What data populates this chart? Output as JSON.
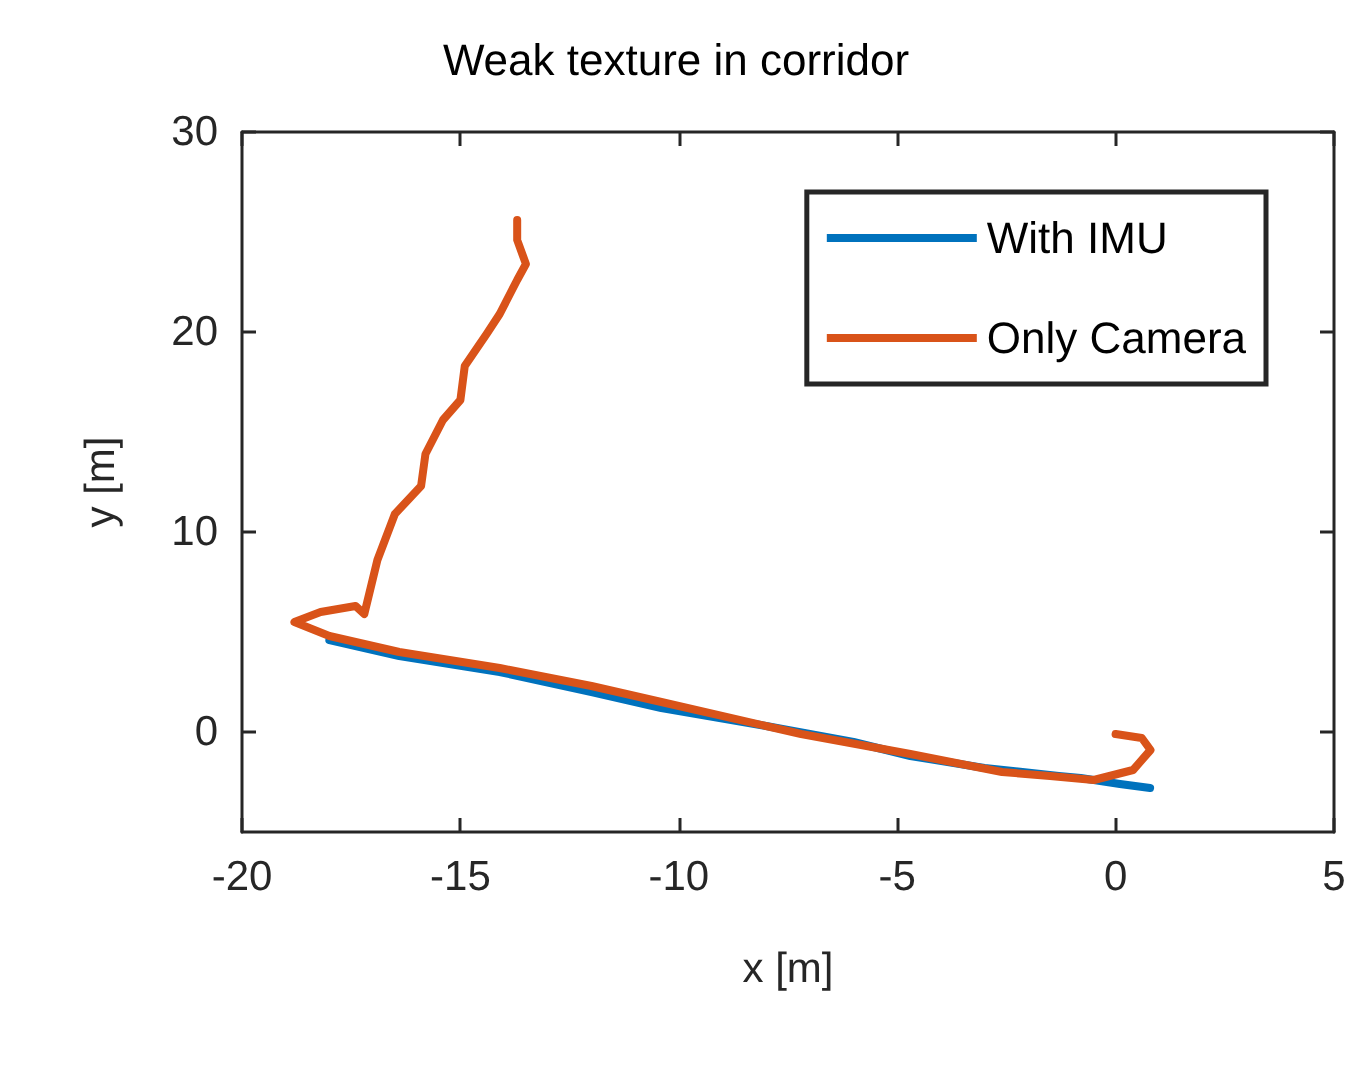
{
  "chart_data": {
    "type": "line",
    "title": "Weak texture in corridor",
    "xlabel": "x [m]",
    "ylabel": "y [m]",
    "xlim": [
      -20,
      5
    ],
    "ylim": [
      -5,
      30
    ],
    "xticks": [
      -20,
      -15,
      -10,
      -5,
      0,
      5
    ],
    "yticks": [
      0,
      10,
      20,
      30
    ],
    "grid": false,
    "legend": "top right",
    "marker": "none",
    "line_style": "solid",
    "series": [
      {
        "name": "With IMU",
        "color": "#0072bd",
        "x": [
          -18.0,
          -16.4,
          -14.1,
          -12.0,
          -10.4,
          -8.0,
          -6.0,
          -4.7,
          -3.0,
          -1.3,
          -0.8,
          0.1,
          0.79
        ],
        "values": [
          4.6,
          3.8,
          3.0,
          2.0,
          1.2,
          0.3,
          -0.5,
          -1.2,
          -1.8,
          -2.2,
          -2.3,
          -2.6,
          -2.8
        ]
      },
      {
        "name": "Only Camera",
        "color": "#d95319",
        "x": [
          0.0,
          0.6,
          0.8,
          0.4,
          -0.5,
          -1.5,
          -2.6,
          -4.7,
          -7.2,
          -10.4,
          -12.0,
          -14.1,
          -16.4,
          -18.0,
          -18.8,
          -18.2,
          -17.4,
          -17.2,
          -16.9,
          -16.5,
          -15.9,
          -15.8,
          -15.4,
          -15.0,
          -14.9,
          -14.4,
          -14.1,
          -13.7,
          -13.5,
          -13.7,
          -13.7
        ],
        "values": [
          -0.1,
          -0.3,
          -0.9,
          -1.9,
          -2.4,
          -2.2,
          -2.0,
          -1.1,
          -0.1,
          1.5,
          2.3,
          3.2,
          4.0,
          4.8,
          5.5,
          6.0,
          6.3,
          5.9,
          8.6,
          10.9,
          12.3,
          13.9,
          15.6,
          16.6,
          18.3,
          19.9,
          20.9,
          22.6,
          23.4,
          24.6,
          25.6
        ]
      }
    ]
  }
}
